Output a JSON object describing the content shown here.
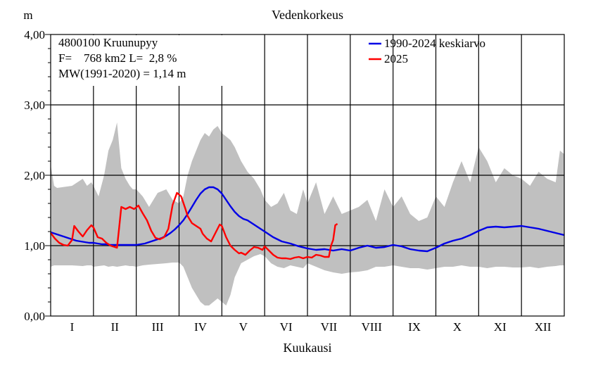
{
  "chart_data": {
    "type": "line",
    "title": "Vedenkorkeus",
    "ylabel": "m",
    "xlabel": "Kuukausi",
    "ylim": [
      0,
      4
    ],
    "yticks": [
      "0,00",
      "1,00",
      "2,00",
      "3,00",
      "4,00"
    ],
    "categories": [
      "I",
      "II",
      "III",
      "IV",
      "V",
      "VI",
      "VII",
      "VIII",
      "IX",
      "X",
      "XI",
      "XII"
    ],
    "grid": true,
    "info": {
      "station": "4800100 Kruunupyy",
      "area": "F=    768 km2 L=  2,8 %",
      "mw": "MW(1991-2020) = 1,14 m"
    },
    "legend_position": "top-right",
    "x_unit": "month (fractional, 0–12)",
    "range_band": {
      "color": "#c0c0c0",
      "x": [
        0.0,
        0.08,
        0.15,
        0.5,
        0.75,
        0.85,
        0.95,
        1.0,
        1.12,
        1.25,
        1.35,
        1.45,
        1.55,
        1.65,
        1.75,
        1.85,
        1.92,
        2.0,
        2.15,
        2.3,
        2.5,
        2.7,
        2.85,
        3.0,
        3.1,
        3.2,
        3.3,
        3.4,
        3.5,
        3.6,
        3.7,
        3.8,
        3.9,
        4.0,
        4.1,
        4.2,
        4.3,
        4.45,
        4.6,
        4.75,
        4.9,
        5.0,
        5.15,
        5.3,
        5.45,
        5.6,
        5.75,
        5.9,
        6.0,
        6.2,
        6.4,
        6.6,
        6.8,
        7.0,
        7.2,
        7.4,
        7.6,
        7.8,
        8.0,
        8.2,
        8.4,
        8.6,
        8.8,
        9.0,
        9.2,
        9.4,
        9.6,
        9.8,
        10.0,
        10.2,
        10.4,
        10.6,
        10.8,
        11.0,
        11.2,
        11.4,
        11.6,
        11.8,
        11.9,
        12.0
      ],
      "max": [
        2.15,
        1.85,
        1.82,
        1.85,
        1.95,
        1.85,
        1.9,
        1.85,
        1.7,
        2.0,
        2.35,
        2.5,
        2.75,
        2.1,
        1.95,
        1.85,
        1.8,
        1.8,
        1.7,
        1.55,
        1.75,
        1.8,
        1.65,
        1.6,
        1.7,
        2.0,
        2.2,
        2.35,
        2.5,
        2.6,
        2.55,
        2.65,
        2.7,
        2.6,
        2.55,
        2.5,
        2.4,
        2.2,
        2.05,
        1.95,
        1.8,
        1.65,
        1.55,
        1.6,
        1.75,
        1.5,
        1.45,
        1.8,
        1.6,
        1.9,
        1.45,
        1.7,
        1.45,
        1.5,
        1.55,
        1.65,
        1.35,
        1.8,
        1.55,
        1.7,
        1.45,
        1.35,
        1.4,
        1.7,
        1.55,
        1.9,
        2.2,
        1.9,
        2.4,
        2.2,
        1.9,
        2.1,
        2.0,
        1.95,
        1.85,
        2.05,
        1.95,
        1.9,
        2.35,
        2.3
      ],
      "min": [
        0.7,
        0.72,
        0.72,
        0.72,
        0.71,
        0.72,
        0.72,
        0.7,
        0.71,
        0.72,
        0.7,
        0.71,
        0.7,
        0.71,
        0.72,
        0.71,
        0.71,
        0.7,
        0.72,
        0.73,
        0.74,
        0.75,
        0.76,
        0.76,
        0.7,
        0.55,
        0.4,
        0.3,
        0.2,
        0.15,
        0.15,
        0.2,
        0.25,
        0.2,
        0.15,
        0.3,
        0.55,
        0.75,
        0.8,
        0.85,
        0.88,
        0.85,
        0.75,
        0.7,
        0.68,
        0.72,
        0.7,
        0.68,
        0.75,
        0.7,
        0.65,
        0.62,
        0.6,
        0.62,
        0.63,
        0.65,
        0.7,
        0.7,
        0.72,
        0.7,
        0.68,
        0.68,
        0.66,
        0.68,
        0.7,
        0.7,
        0.72,
        0.7,
        0.7,
        0.68,
        0.7,
        0.7,
        0.69,
        0.69,
        0.7,
        0.68,
        0.7,
        0.71,
        0.72,
        0.72
      ]
    },
    "series": [
      {
        "name": "1990-2024 keskiarvo",
        "color": "#0000e6",
        "x": [
          0.0,
          0.1,
          0.2,
          0.3,
          0.4,
          0.5,
          0.6,
          0.7,
          0.8,
          0.9,
          1.0,
          1.1,
          1.2,
          1.3,
          1.4,
          1.5,
          1.6,
          1.7,
          1.8,
          1.9,
          2.0,
          2.1,
          2.2,
          2.3,
          2.4,
          2.5,
          2.6,
          2.7,
          2.8,
          2.9,
          3.0,
          3.1,
          3.2,
          3.3,
          3.4,
          3.5,
          3.6,
          3.7,
          3.8,
          3.9,
          4.0,
          4.1,
          4.2,
          4.3,
          4.4,
          4.5,
          4.6,
          4.7,
          4.8,
          4.9,
          5.0,
          5.2,
          5.4,
          5.6,
          5.8,
          6.0,
          6.2,
          6.4,
          6.6,
          6.8,
          7.0,
          7.2,
          7.4,
          7.6,
          7.8,
          8.0,
          8.2,
          8.4,
          8.6,
          8.8,
          9.0,
          9.2,
          9.4,
          9.6,
          9.8,
          10.0,
          10.2,
          10.4,
          10.6,
          10.8,
          11.0,
          11.2,
          11.4,
          11.6,
          11.8,
          12.0
        ],
        "y": [
          1.19,
          1.17,
          1.15,
          1.13,
          1.11,
          1.09,
          1.07,
          1.06,
          1.05,
          1.04,
          1.04,
          1.03,
          1.02,
          1.02,
          1.01,
          1.01,
          1.01,
          1.01,
          1.01,
          1.01,
          1.01,
          1.02,
          1.03,
          1.05,
          1.07,
          1.09,
          1.11,
          1.14,
          1.18,
          1.23,
          1.29,
          1.36,
          1.45,
          1.55,
          1.65,
          1.74,
          1.8,
          1.83,
          1.83,
          1.8,
          1.74,
          1.65,
          1.56,
          1.48,
          1.42,
          1.38,
          1.36,
          1.32,
          1.28,
          1.24,
          1.2,
          1.12,
          1.06,
          1.03,
          0.99,
          0.96,
          0.94,
          0.95,
          0.93,
          0.95,
          0.93,
          0.97,
          1.0,
          0.97,
          0.98,
          1.01,
          0.99,
          0.95,
          0.93,
          0.92,
          0.97,
          1.03,
          1.07,
          1.1,
          1.15,
          1.21,
          1.26,
          1.27,
          1.26,
          1.27,
          1.28,
          1.26,
          1.24,
          1.21,
          1.18,
          1.15
        ]
      },
      {
        "name": "2025",
        "color": "#ff0000",
        "x": [
          0.0,
          0.1,
          0.2,
          0.3,
          0.4,
          0.5,
          0.55,
          0.65,
          0.75,
          0.85,
          0.95,
          1.0,
          1.1,
          1.2,
          1.3,
          1.4,
          1.5,
          1.55,
          1.6,
          1.65,
          1.75,
          1.85,
          1.95,
          2.05,
          2.15,
          2.25,
          2.35,
          2.45,
          2.55,
          2.65,
          2.75,
          2.85,
          2.95,
          3.05,
          3.15,
          3.2,
          3.3,
          3.4,
          3.5,
          3.55,
          3.65,
          3.75,
          3.85,
          3.95,
          4.0,
          4.1,
          4.2,
          4.3,
          4.4,
          4.45,
          4.55,
          4.65,
          4.75,
          4.85,
          4.95,
          5.0,
          5.1,
          5.2,
          5.3,
          5.4,
          5.5,
          5.6,
          5.7,
          5.8,
          5.9,
          6.0,
          6.1,
          6.2,
          6.3,
          6.4,
          6.5,
          6.55,
          6.6,
          6.65,
          6.7
        ],
        "y": [
          1.18,
          1.1,
          1.04,
          1.01,
          1.0,
          1.08,
          1.28,
          1.2,
          1.13,
          1.22,
          1.29,
          1.26,
          1.12,
          1.1,
          1.04,
          1.0,
          0.98,
          0.97,
          1.25,
          1.55,
          1.52,
          1.55,
          1.52,
          1.57,
          1.46,
          1.36,
          1.21,
          1.11,
          1.09,
          1.12,
          1.24,
          1.58,
          1.75,
          1.7,
          1.52,
          1.42,
          1.32,
          1.28,
          1.24,
          1.17,
          1.1,
          1.06,
          1.18,
          1.3,
          1.28,
          1.12,
          1.0,
          0.94,
          0.89,
          0.9,
          0.87,
          0.93,
          0.98,
          0.97,
          0.94,
          0.99,
          0.93,
          0.87,
          0.83,
          0.82,
          0.82,
          0.81,
          0.83,
          0.84,
          0.82,
          0.84,
          0.83,
          0.87,
          0.86,
          0.84,
          0.84,
          1.0,
          1.08,
          1.29,
          1.31
        ]
      }
    ]
  }
}
